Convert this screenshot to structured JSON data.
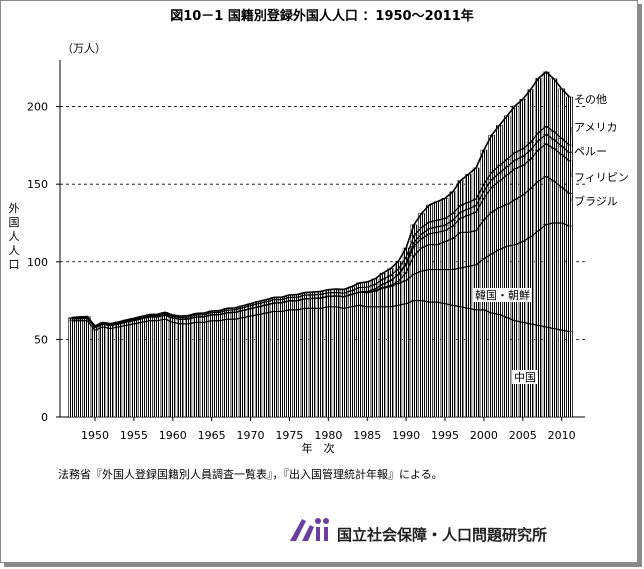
{
  "chart_data": {
    "type": "bar",
    "title": "図10－1 国籍別登録外国人人口 ：1950～2011年",
    "ylabel": "外国人人口",
    "yunit": "（万人）",
    "xlabel": "年　次",
    "ylim": [
      0,
      230
    ],
    "yticks": [
      "0",
      "50",
      "100",
      "150",
      "200"
    ],
    "xticks": [
      "1950",
      "1955",
      "1960",
      "1965",
      "1970",
      "1975",
      "1980",
      "1985",
      "1990",
      "1995",
      "2000",
      "2005",
      "2010"
    ],
    "grid": "dashed horizontal at 50, 100, 150, 200",
    "years": [
      1947,
      1948,
      1949,
      1950,
      1951,
      1952,
      1953,
      1954,
      1955,
      1956,
      1957,
      1958,
      1959,
      1960,
      1961,
      1962,
      1963,
      1964,
      1965,
      1966,
      1967,
      1968,
      1969,
      1970,
      1971,
      1972,
      1973,
      1974,
      1975,
      1976,
      1977,
      1978,
      1979,
      1980,
      1981,
      1982,
      1983,
      1984,
      1985,
      1986,
      1987,
      1988,
      1989,
      1990,
      1991,
      1992,
      1993,
      1994,
      1995,
      1996,
      1997,
      1998,
      1999,
      2000,
      2001,
      2002,
      2003,
      2004,
      2005,
      2006,
      2007,
      2008,
      2009,
      2010,
      2011
    ],
    "series": [
      {
        "name": "韓国・朝鮮",
        "values": [
          62,
          62,
          62,
          56,
          58,
          57,
          58,
          59,
          60,
          61,
          62,
          62,
          63,
          61,
          60,
          60,
          61,
          61,
          62,
          62,
          63,
          63,
          64,
          65,
          66,
          67,
          68,
          68,
          69,
          69,
          70,
          70,
          70,
          71,
          71,
          70,
          71,
          72,
          71,
          71,
          71,
          71,
          72,
          73,
          75,
          75,
          74,
          74,
          73,
          72,
          71,
          70,
          69,
          69,
          67,
          66,
          64,
          62,
          61,
          60,
          59,
          58,
          57,
          56,
          55
        ]
      },
      {
        "name": "中国",
        "values": [
          1.2,
          1.4,
          1.6,
          1.7,
          1.8,
          1.9,
          2.0,
          2.1,
          2.2,
          2.3,
          2.4,
          2.5,
          2.6,
          2.8,
          3.0,
          3.2,
          3.4,
          3.6,
          3.8,
          4.0,
          4.2,
          4.4,
          4.6,
          4.8,
          5.0,
          5.2,
          5.4,
          5.6,
          5.8,
          6.0,
          6.2,
          6.4,
          6.6,
          6.8,
          7.0,
          7.5,
          8.0,
          8.5,
          9,
          10,
          12,
          13,
          14,
          15,
          17,
          19,
          21,
          21,
          22,
          23,
          25,
          27,
          29,
          33,
          38,
          42,
          46,
          49,
          52,
          56,
          61,
          66,
          68,
          69,
          68
        ]
      },
      {
        "name": "ブラジル",
        "values": [
          0,
          0,
          0,
          0,
          0,
          0,
          0,
          0,
          0,
          0,
          0,
          0,
          0,
          0,
          0,
          0,
          0,
          0,
          0,
          0,
          0,
          0,
          0,
          0,
          0,
          0,
          0,
          0,
          0,
          0,
          0,
          0,
          0,
          0,
          0,
          0,
          0,
          0,
          0.3,
          0.4,
          0.5,
          0.7,
          1.5,
          5,
          12,
          15,
          16,
          16,
          18,
          20,
          23,
          22,
          22,
          25,
          27,
          27,
          27,
          29,
          30,
          31,
          32,
          31,
          27,
          23,
          21
        ]
      },
      {
        "name": "フィリピン",
        "values": [
          0,
          0,
          0,
          0,
          0,
          0,
          0,
          0,
          0,
          0,
          0,
          0,
          0,
          0,
          0,
          0,
          0,
          0,
          0,
          0,
          0,
          0,
          0,
          0,
          0,
          0,
          0,
          0,
          0,
          0,
          0,
          0,
          0,
          0,
          0,
          0,
          0,
          0,
          0.5,
          1,
          2,
          3,
          4,
          5,
          6,
          6,
          7,
          8,
          7,
          8,
          9,
          11,
          12,
          14,
          16,
          17,
          19,
          20,
          19,
          19,
          20,
          21,
          21,
          21,
          21
        ]
      },
      {
        "name": "ペルー",
        "values": [
          0,
          0,
          0,
          0,
          0,
          0,
          0,
          0,
          0,
          0,
          0,
          0,
          0,
          0,
          0,
          0,
          0,
          0,
          0,
          0,
          0,
          0,
          0,
          0,
          0,
          0,
          0,
          0,
          0,
          0,
          0,
          0,
          0,
          0,
          0,
          0,
          0,
          0,
          0,
          0,
          0.1,
          0.2,
          0.4,
          1,
          2.5,
          3,
          3.3,
          3.5,
          3.6,
          3.7,
          4,
          4,
          4.2,
          4.6,
          5,
          5.2,
          5.3,
          5.5,
          5.8,
          5.9,
          6,
          6,
          5.7,
          5.5,
          5.3
        ]
      },
      {
        "name": "アメリカ",
        "values": [
          0.4,
          0.5,
          0.5,
          0.5,
          0.5,
          0.6,
          0.6,
          0.7,
          0.7,
          0.8,
          0.8,
          0.9,
          1,
          1,
          1.1,
          1.2,
          1.3,
          1.4,
          1.4,
          1.5,
          1.6,
          1.7,
          1.8,
          1.9,
          2,
          2,
          2.1,
          2.1,
          2.2,
          2.2,
          2.3,
          2.3,
          2.4,
          2.2,
          2.2,
          2.3,
          2.4,
          2.9,
          2.9,
          3,
          3.1,
          3.2,
          3.4,
          3.9,
          4.3,
          4.2,
          4.3,
          4.3,
          4.3,
          4.4,
          4.3,
          4.3,
          4.3,
          4.4,
          4.6,
          4.8,
          4.8,
          4.9,
          4.9,
          5,
          5.1,
          5.3,
          5.2,
          5,
          4.9
        ]
      },
      {
        "name": "その他",
        "values": [
          0.5,
          0.6,
          0.6,
          0.5,
          0.6,
          0.6,
          0.6,
          0.7,
          0.7,
          0.7,
          0.8,
          0.8,
          0.8,
          0.9,
          0.9,
          1,
          1,
          1,
          1.1,
          1.1,
          1.2,
          1.2,
          1.3,
          1.3,
          1.4,
          1.4,
          1.5,
          1.5,
          1.6,
          1.7,
          1.7,
          1.8,
          1.9,
          2,
          2.2,
          2.4,
          2.6,
          3,
          3.3,
          3.6,
          4,
          4.5,
          5,
          6,
          7,
          9,
          11,
          12,
          13,
          14,
          16,
          18,
          20,
          22,
          24,
          26,
          28,
          30,
          32,
          34,
          35,
          35,
          34,
          32,
          31
        ]
      }
    ],
    "series_labels_right": [
      "その他",
      "アメリカ",
      "ペルー",
      "フィリピン",
      "ブラジル"
    ],
    "inline_labels": [
      "韓国・朝鮮",
      "中国"
    ]
  },
  "source_note": "法務省『外国人登録国籍別人員調査一覧表』，『出入国管理統計年報』による。",
  "organization": "国立社会保障・人口問題研究所",
  "colors": {
    "bar_fill": "#ffffff",
    "stripe": "#000000",
    "org_logo": "#6a3fa0"
  }
}
